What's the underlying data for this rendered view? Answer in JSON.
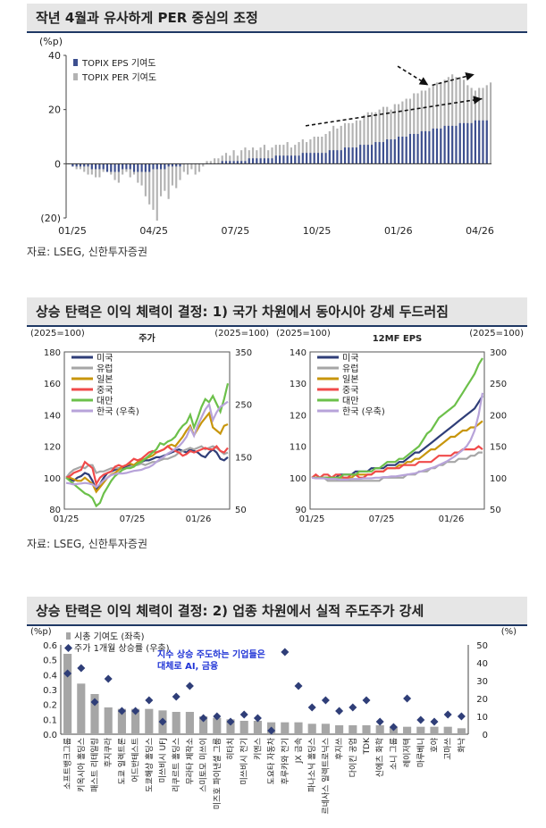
{
  "sections": [
    {
      "title": "작년 4월과 유사하게 PER 중심의 조정",
      "source": "자료: LSEG, 신한투자증권"
    },
    {
      "title": "상승 탄력은 이익 체력이 결정: 1) 국가 차원에서 동아시아 강세 두드러짐",
      "source": "자료: LSEG, 신한투자증권"
    },
    {
      "title": "상승 탄력은 이익 체력이 결정: 2) 업종 차원에서 실적 주도주가 강세"
    }
  ],
  "chart_data": [
    {
      "type": "bar",
      "unit": "(%p)",
      "ylim": [
        -20,
        40
      ],
      "yticks": [
        "40",
        "20",
        "0",
        "(20)"
      ],
      "xticks": [
        "01/25",
        "04/25",
        "07/25",
        "10/25",
        "01/26",
        "04/26"
      ],
      "series": [
        {
          "name": "TOPIX EPS 기여도",
          "color": "#3d4f8f",
          "values": [
            0,
            -1,
            -1,
            -1,
            -1,
            -1,
            -2,
            -2,
            -2,
            -2,
            -3,
            -3,
            -3,
            -3,
            -2,
            -2,
            -2,
            -3,
            -3,
            -3,
            -3,
            -3,
            -2,
            -2,
            -2,
            -2,
            -1,
            -1,
            -1,
            -1,
            0,
            0,
            0,
            0,
            0,
            0,
            0,
            0,
            0,
            0,
            1,
            1,
            1,
            1,
            1,
            1,
            1,
            2,
            2,
            2,
            2,
            2,
            2,
            2,
            3,
            3,
            3,
            3,
            3,
            3,
            3,
            4,
            4,
            4,
            4,
            4,
            4,
            4,
            5,
            5,
            5,
            5,
            6,
            6,
            6,
            6,
            7,
            7,
            7,
            7,
            8,
            8,
            8,
            9,
            9,
            9,
            10,
            10,
            10,
            11,
            11,
            11,
            12,
            12,
            12,
            13,
            13,
            13,
            14,
            14,
            14,
            14,
            15,
            15,
            15,
            15,
            16,
            16,
            16,
            16
          ]
        },
        {
          "name": "TOPIX PER 기여도",
          "color": "#b3b3b3",
          "values": [
            0,
            -1,
            -2,
            -2,
            -3,
            -4,
            -4,
            -5,
            -5,
            -3,
            -3,
            -4,
            -6,
            -7,
            -4,
            -3,
            -5,
            -4,
            -7,
            -8,
            -12,
            -15,
            -17,
            -21,
            -12,
            -10,
            -13,
            -8,
            -9,
            -6,
            -3,
            -4,
            -2,
            -4,
            -3,
            -1,
            1,
            1,
            2,
            2,
            3,
            4,
            3,
            5,
            3,
            5,
            6,
            5,
            6,
            5,
            6,
            7,
            5,
            6,
            7,
            7,
            7,
            8,
            6,
            7,
            8,
            9,
            8,
            9,
            10,
            10,
            10,
            11,
            12,
            14,
            13,
            14,
            15,
            15,
            15,
            16,
            16,
            18,
            19,
            19,
            19,
            20,
            21,
            21,
            20,
            22,
            22,
            23,
            24,
            24,
            26,
            26,
            27,
            27,
            28,
            29,
            30,
            30,
            31,
            32,
            33,
            32,
            32,
            31,
            29,
            28,
            27,
            28,
            28,
            29,
            30
          ]
        }
      ],
      "annotation": "dashed arrows showing EPS contribution rising while PER contribution falls"
    },
    {
      "type": "line",
      "title": "주가",
      "left_axis_label": "(2025=100)",
      "right_axis_label": "(2025=100)",
      "ylim": [
        80,
        180
      ],
      "y2lim": [
        50,
        350
      ],
      "yticks": [
        180,
        160,
        140,
        120,
        100,
        80
      ],
      "y2ticks": [
        350,
        250,
        150,
        50
      ],
      "xticks": [
        "01/25",
        "07/25",
        "01/26"
      ],
      "series": [
        {
          "name": "미국",
          "color": "#2f3e78",
          "values": [
            100,
            99,
            98,
            100,
            101,
            103,
            102,
            98,
            92,
            96,
            100,
            103,
            104,
            105,
            106,
            106,
            107,
            108,
            108,
            109,
            110,
            111,
            111,
            112,
            113,
            113,
            114,
            115,
            116,
            117,
            118,
            117,
            116,
            118,
            117,
            116,
            114,
            113,
            116,
            118,
            116,
            112,
            111,
            113
          ]
        },
        {
          "name": "유럽",
          "color": "#a6a6a6",
          "values": [
            100,
            103,
            105,
            106,
            107,
            106,
            108,
            108,
            103,
            104,
            104,
            105,
            106,
            106,
            106,
            105,
            106,
            107,
            108,
            108,
            109,
            108,
            109,
            110,
            110,
            111,
            112,
            112,
            113,
            114,
            116,
            117,
            118,
            119,
            118,
            119,
            120,
            118,
            119,
            120,
            119,
            117,
            115,
            116
          ]
        },
        {
          "name": "일본",
          "color": "#c8960c",
          "values": [
            100,
            100,
            99,
            98,
            98,
            100,
            98,
            96,
            91,
            94,
            97,
            100,
            102,
            103,
            105,
            107,
            108,
            109,
            108,
            110,
            111,
            112,
            113,
            114,
            116,
            117,
            118,
            120,
            121,
            120,
            123,
            126,
            130,
            133,
            127,
            131,
            135,
            138,
            141,
            132,
            130,
            128,
            133,
            134
          ]
        },
        {
          "name": "중국",
          "color": "#f04a4a",
          "values": [
            100,
            101,
            103,
            104,
            105,
            110,
            108,
            106,
            96,
            100,
            102,
            103,
            104,
            107,
            108,
            107,
            108,
            110,
            112,
            111,
            112,
            114,
            116,
            117,
            116,
            117,
            118,
            120,
            118,
            117,
            116,
            114,
            115,
            117,
            116,
            117,
            118,
            119,
            118,
            118,
            120,
            117,
            116,
            119
          ]
        },
        {
          "name": "대만",
          "color": "#6cc04a",
          "values": [
            100,
            98,
            96,
            94,
            92,
            90,
            89,
            87,
            82,
            84,
            90,
            94,
            98,
            101,
            103,
            105,
            106,
            106,
            107,
            109,
            110,
            112,
            114,
            116,
            118,
            122,
            121,
            123,
            124,
            126,
            130,
            133,
            135,
            140,
            132,
            138,
            145,
            150,
            148,
            152,
            147,
            142,
            150,
            160
          ]
        },
        {
          "name": "한국 (우축)",
          "color": "#b7a3d9",
          "axis": "right",
          "values": [
            100,
            99,
            97,
            98,
            99,
            100,
            99,
            97,
            92,
            98,
            105,
            110,
            115,
            117,
            118,
            118,
            119,
            121,
            123,
            124,
            125,
            128,
            130,
            134,
            140,
            146,
            150,
            156,
            160,
            165,
            170,
            178,
            188,
            205,
            190,
            210,
            225,
            240,
            250,
            220,
            235,
            245,
            250,
            255
          ]
        }
      ]
    },
    {
      "type": "line",
      "title": "12MF EPS",
      "left_axis_label": "(2025=100)",
      "right_axis_label": "(2025=100)",
      "ylim": [
        90,
        140
      ],
      "y2lim": [
        50,
        300
      ],
      "yticks": [
        140,
        130,
        120,
        110,
        100,
        90
      ],
      "y2ticks": [
        300,
        250,
        200,
        150,
        100,
        50
      ],
      "xticks": [
        "01/25",
        "07/25",
        "01/26"
      ],
      "series": [
        {
          "name": "미국",
          "color": "#2f3e78",
          "values": [
            100,
            100,
            100,
            100,
            100,
            100,
            100,
            101,
            101,
            101,
            101,
            102,
            102,
            102,
            102,
            103,
            103,
            103,
            103,
            104,
            104,
            104,
            105,
            105,
            106,
            107,
            108,
            108,
            109,
            110,
            111,
            112,
            113,
            114,
            115,
            116,
            117,
            118,
            119,
            120,
            121,
            122,
            124,
            126
          ]
        },
        {
          "name": "유럽",
          "color": "#a6a6a6",
          "values": [
            100,
            100,
            100,
            100,
            99,
            99,
            99,
            99,
            99,
            99,
            99,
            99,
            99,
            99,
            99,
            99,
            99,
            99,
            100,
            100,
            100,
            100,
            100,
            100,
            101,
            101,
            101,
            102,
            102,
            102,
            103,
            103,
            104,
            104,
            105,
            105,
            105,
            106,
            106,
            106,
            107,
            107,
            108,
            108
          ]
        },
        {
          "name": "일본",
          "color": "#c8960c",
          "values": [
            100,
            100,
            100,
            100,
            100,
            100,
            100,
            100,
            100,
            100,
            100,
            101,
            101,
            101,
            101,
            101,
            102,
            102,
            102,
            103,
            103,
            103,
            104,
            104,
            105,
            105,
            106,
            106,
            107,
            108,
            109,
            109,
            110,
            111,
            112,
            113,
            113,
            114,
            115,
            115,
            116,
            116,
            117,
            118
          ]
        },
        {
          "name": "중국",
          "color": "#f04a4a",
          "values": [
            100,
            101,
            100,
            101,
            101,
            100,
            101,
            101,
            100,
            100,
            101,
            101,
            100,
            100,
            101,
            101,
            102,
            102,
            102,
            103,
            103,
            103,
            103,
            104,
            104,
            104,
            104,
            105,
            105,
            105,
            105,
            106,
            107,
            107,
            107,
            107,
            108,
            108,
            109,
            109,
            109,
            109,
            110,
            109
          ]
        },
        {
          "name": "대만",
          "color": "#6cc04a",
          "values": [
            100,
            100,
            100,
            100,
            100,
            100,
            100,
            100,
            101,
            101,
            101,
            101,
            102,
            102,
            102,
            102,
            103,
            103,
            104,
            105,
            105,
            105,
            106,
            106,
            107,
            108,
            109,
            110,
            112,
            114,
            115,
            117,
            119,
            120,
            121,
            122,
            123,
            125,
            127,
            129,
            131,
            133,
            136,
            138
          ]
        },
        {
          "name": "한국 (우축)",
          "color": "#b7a3d9",
          "axis": "right",
          "values": [
            100,
            99,
            99,
            99,
            98,
            98,
            98,
            97,
            97,
            97,
            98,
            98,
            98,
            99,
            99,
            99,
            100,
            100,
            101,
            101,
            102,
            102,
            103,
            104,
            105,
            106,
            107,
            109,
            111,
            113,
            115,
            117,
            120,
            123,
            126,
            130,
            134,
            139,
            144,
            150,
            160,
            175,
            200,
            235
          ]
        }
      ]
    },
    {
      "type": "bar",
      "left_axis_label": "(%p)",
      "right_axis_label": "(%)",
      "ylim": [
        0,
        0.6
      ],
      "y2lim": [
        0,
        50
      ],
      "yticks": [
        "0.6",
        "0.5",
        "0.4",
        "0.3",
        "0.2",
        "0.1",
        "0.0"
      ],
      "y2ticks": [
        "50",
        "40",
        "30",
        "20",
        "10",
        "0"
      ],
      "annotation_lines": [
        "지수 상승 주도하는 기업들은",
        "대체로 AI, 금융"
      ],
      "categories": [
        "소프트뱅크그룹",
        "키옥시아 홀딩스",
        "패스트 리테일링",
        "후지쿠라",
        "도쿄 일렉트론",
        "어드반테스트",
        "도쿄해상 홀딩스",
        "미쓰비시 UFJ",
        "리쿠르트 홀딩스",
        "무라타 제작소",
        "스미토모 미쓰이",
        "미즈호 파이낸셜 그룹",
        "히타치",
        "미쓰비시 전기",
        "키엔스",
        "도요타 자동차",
        "후루카와 전기",
        "JX 금속",
        "파나소닉 홀딩스",
        "르네사스 일렉트로닉스",
        "후지쓰",
        "다이킨 공업",
        "TDK",
        "신에츠 화학",
        "소니 그룹",
        "레이저텍",
        "마루베니",
        "호야",
        "고마쓰",
        "화낙"
      ],
      "series": [
        {
          "name": "시총 기여도 (좌축)",
          "color": "#a6a6a6",
          "values": [
            0.54,
            0.34,
            0.27,
            0.18,
            0.17,
            0.17,
            0.17,
            0.16,
            0.15,
            0.15,
            0.12,
            0.11,
            0.1,
            0.09,
            0.09,
            0.08,
            0.08,
            0.08,
            0.07,
            0.07,
            0.06,
            0.06,
            0.06,
            0.06,
            0.05,
            0.05,
            0.05,
            0.05,
            0.05,
            0.04
          ]
        },
        {
          "name": "주가 1개월 상승률 (우축)",
          "color": "#2f3e78",
          "values": [
            34,
            37,
            18,
            31,
            13,
            13,
            19,
            7,
            21,
            27,
            9,
            10,
            7,
            11,
            9,
            2,
            46,
            27,
            15,
            19,
            13,
            15,
            19,
            7,
            4,
            20,
            8,
            7,
            11,
            10
          ]
        }
      ]
    }
  ]
}
